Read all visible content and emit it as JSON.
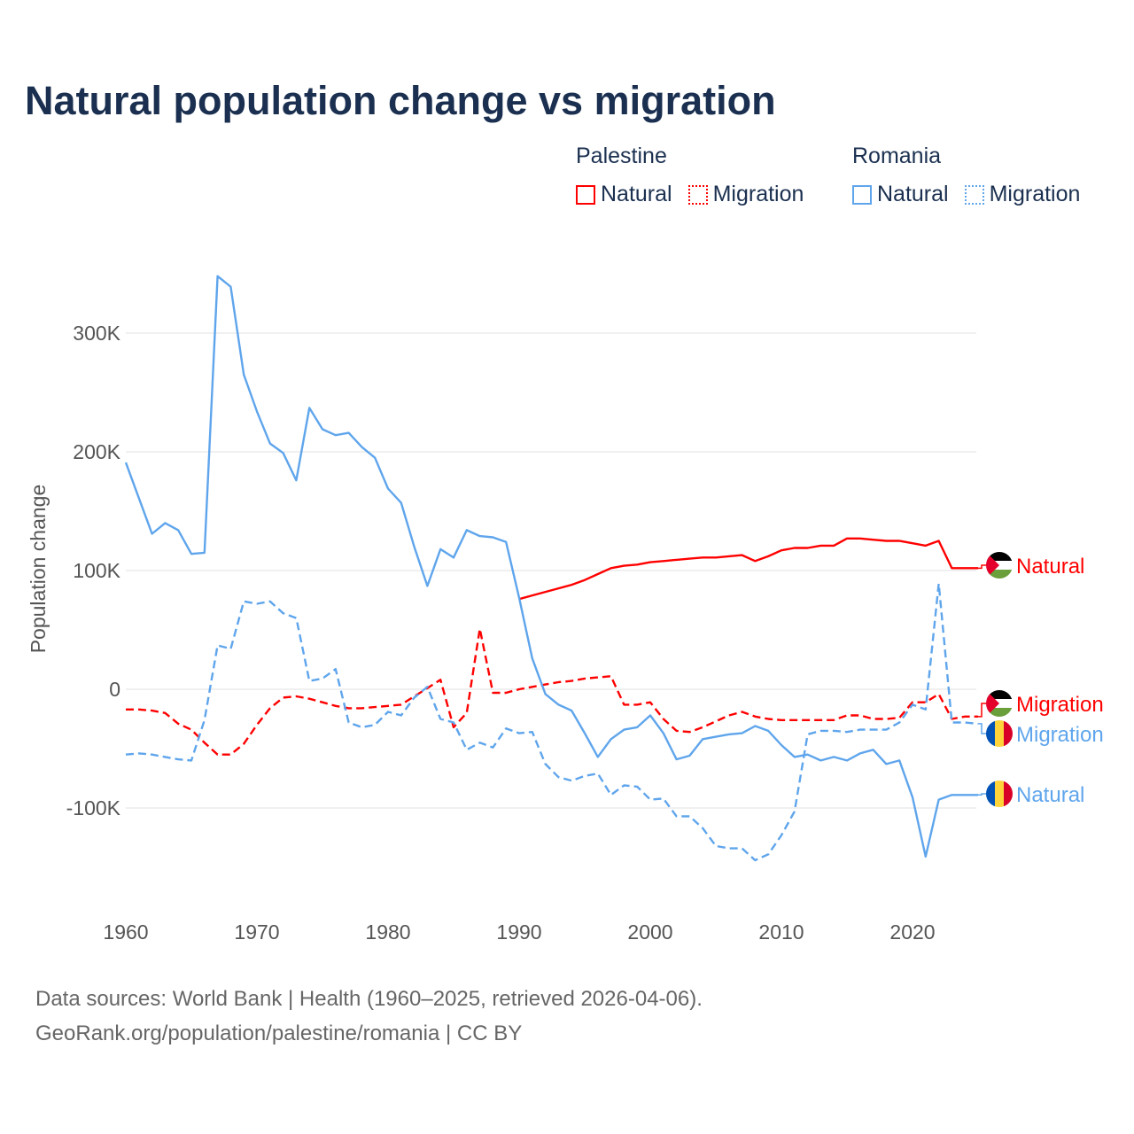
{
  "chart_data": {
    "type": "line",
    "title": "Natural population change vs migration",
    "xlabel": "",
    "ylabel": "Population change",
    "xlim": [
      1960,
      2025
    ],
    "ylim": [
      -160000,
      360000
    ],
    "x_ticks": [
      1960,
      1970,
      1980,
      1990,
      2000,
      2010,
      2020
    ],
    "x_tick_labels": [
      "1960",
      "1970",
      "1980",
      "1990",
      "2000",
      "2010",
      "2020"
    ],
    "y_ticks": [
      -100000,
      0,
      100000,
      200000,
      300000
    ],
    "y_tick_labels": [
      "-100K",
      "0",
      "100K",
      "200K",
      "300K"
    ],
    "grid": true,
    "legend": {
      "placement": "top-right",
      "groups": [
        {
          "name": "Palestine",
          "items": [
            "Natural",
            "Migration"
          ]
        },
        {
          "name": "Romania",
          "items": [
            "Natural",
            "Migration"
          ]
        }
      ]
    },
    "series": [
      {
        "name": "Palestine Natural",
        "country": "Palestine",
        "kind": "Natural",
        "color": "#ff0000",
        "dash": false,
        "end_label": "Natural",
        "x": [
          1990,
          1991,
          1992,
          1993,
          1994,
          1995,
          1996,
          1997,
          1998,
          1999,
          2000,
          2001,
          2002,
          2003,
          2004,
          2005,
          2006,
          2007,
          2008,
          2009,
          2010,
          2011,
          2012,
          2013,
          2014,
          2015,
          2016,
          2017,
          2018,
          2019,
          2020,
          2021,
          2022,
          2023,
          2024,
          2025
        ],
        "values": [
          76000,
          79000,
          82000,
          85000,
          88000,
          92000,
          97000,
          102000,
          104000,
          105000,
          107000,
          108000,
          109000,
          110000,
          111000,
          111000,
          112000,
          113000,
          108000,
          112000,
          117000,
          119000,
          119000,
          121000,
          121000,
          127000,
          127000,
          126000,
          125000,
          125000,
          123000,
          121000,
          125000,
          102000,
          102000,
          102000
        ]
      },
      {
        "name": "Palestine Migration",
        "country": "Palestine",
        "kind": "Migration",
        "color": "#ff0000",
        "dash": true,
        "end_label": "Migration",
        "x": [
          1960,
          1961,
          1962,
          1963,
          1964,
          1965,
          1966,
          1967,
          1968,
          1969,
          1970,
          1971,
          1972,
          1973,
          1974,
          1975,
          1976,
          1977,
          1978,
          1979,
          1980,
          1981,
          1982,
          1983,
          1984,
          1985,
          1986,
          1987,
          1988,
          1989,
          1990,
          1991,
          1992,
          1993,
          1994,
          1995,
          1996,
          1997,
          1998,
          1999,
          2000,
          2001,
          2002,
          2003,
          2004,
          2005,
          2006,
          2007,
          2008,
          2009,
          2010,
          2011,
          2012,
          2013,
          2014,
          2015,
          2016,
          2017,
          2018,
          2019,
          2020,
          2021,
          2022,
          2023,
          2024,
          2025
        ],
        "values": [
          -17000,
          -17000,
          -18000,
          -20000,
          -29000,
          -34000,
          -45000,
          -55000,
          -55000,
          -46000,
          -30000,
          -16000,
          -7000,
          -6000,
          -8000,
          -11000,
          -14000,
          -16000,
          -16000,
          -15000,
          -14000,
          -13000,
          -6000,
          1000,
          8000,
          -32000,
          -20000,
          51000,
          -3000,
          -3000,
          0,
          2000,
          4000,
          6000,
          7000,
          9000,
          10000,
          11000,
          -13000,
          -13000,
          -11000,
          -25000,
          -35000,
          -36000,
          -32000,
          -27000,
          -22000,
          -19000,
          -23000,
          -25000,
          -26000,
          -26000,
          -26000,
          -26000,
          -26000,
          -22000,
          -22000,
          -25000,
          -25000,
          -24000,
          -11000,
          -11000,
          -4000,
          -25000,
          -23000,
          -23000
        ]
      },
      {
        "name": "Romania Natural",
        "country": "Romania",
        "kind": "Natural",
        "color": "#5fa5ec",
        "dash": false,
        "end_label": "Natural",
        "x": [
          1960,
          1961,
          1962,
          1963,
          1964,
          1965,
          1966,
          1967,
          1968,
          1969,
          1970,
          1971,
          1972,
          1973,
          1974,
          1975,
          1976,
          1977,
          1978,
          1979,
          1980,
          1981,
          1982,
          1983,
          1984,
          1985,
          1986,
          1987,
          1988,
          1989,
          1990,
          1991,
          1992,
          1993,
          1994,
          1995,
          1996,
          1997,
          1998,
          1999,
          2000,
          2001,
          2002,
          2003,
          2004,
          2005,
          2006,
          2007,
          2008,
          2009,
          2010,
          2011,
          2012,
          2013,
          2014,
          2015,
          2016,
          2017,
          2018,
          2019,
          2020,
          2021,
          2022,
          2023,
          2024,
          2025
        ],
        "values": [
          191000,
          161000,
          131000,
          140000,
          134000,
          114000,
          115000,
          348000,
          339000,
          265000,
          234000,
          207000,
          199000,
          176000,
          237000,
          219000,
          214000,
          216000,
          204000,
          195000,
          169000,
          157000,
          120000,
          87000,
          118000,
          111000,
          134000,
          129000,
          128000,
          124000,
          77000,
          26000,
          -4000,
          -13000,
          -18000,
          -37000,
          -57000,
          -42000,
          -34000,
          -32000,
          -22000,
          -37000,
          -59000,
          -56000,
          -42000,
          -40000,
          -38000,
          -37000,
          -31000,
          -35000,
          -47000,
          -57000,
          -55000,
          -60000,
          -57000,
          -60000,
          -54000,
          -51000,
          -63000,
          -60000,
          -91000,
          -141000,
          -93000,
          -89000,
          -89000,
          -89000
        ]
      },
      {
        "name": "Romania Migration",
        "country": "Romania",
        "kind": "Migration",
        "color": "#5fa5ec",
        "dash": true,
        "end_label": "Migration",
        "x": [
          1960,
          1961,
          1962,
          1963,
          1964,
          1965,
          1966,
          1967,
          1968,
          1969,
          1970,
          1971,
          1972,
          1973,
          1974,
          1975,
          1976,
          1977,
          1978,
          1979,
          1980,
          1981,
          1982,
          1983,
          1984,
          1985,
          1986,
          1987,
          1988,
          1989,
          1990,
          1991,
          1992,
          1993,
          1994,
          1995,
          1996,
          1997,
          1998,
          1999,
          2000,
          2001,
          2002,
          2003,
          2004,
          2005,
          2006,
          2007,
          2008,
          2009,
          2010,
          2011,
          2012,
          2013,
          2014,
          2015,
          2016,
          2017,
          2018,
          2019,
          2020,
          2021,
          2022,
          2023,
          2024,
          2025
        ],
        "values": [
          -55000,
          -54000,
          -55000,
          -57000,
          -59000,
          -60000,
          -26000,
          37000,
          34000,
          74000,
          72000,
          74000,
          64000,
          60000,
          7000,
          9000,
          17000,
          -28000,
          -32000,
          -30000,
          -19000,
          -22000,
          -7000,
          2000,
          -25000,
          -28000,
          -51000,
          -45000,
          -49000,
          -33000,
          -37000,
          -36000,
          -63000,
          -74000,
          -77000,
          -73000,
          -71000,
          -89000,
          -81000,
          -82000,
          -93000,
          -92000,
          -107000,
          -107000,
          -117000,
          -132000,
          -134000,
          -134000,
          -144000,
          -139000,
          -123000,
          -103000,
          -38000,
          -35000,
          -35000,
          -36000,
          -34000,
          -34000,
          -34000,
          -28000,
          -13000,
          -17000,
          89000,
          -28000,
          -28000,
          -29000
        ]
      }
    ]
  },
  "legend_labels": {
    "palestine": "Palestine",
    "romania": "Romania",
    "natural": "Natural",
    "migration": "Migration"
  },
  "footer": {
    "line1": "Data sources: World Bank | Health (1960–2025, retrieved 2026-04-06).",
    "line2": "GeoRank.org/population/palestine/romania | CC BY"
  },
  "colors": {
    "palestine": "#ff0000",
    "romania": "#5fa5ec",
    "title": "#1b3050"
  },
  "icons": {
    "palestine": "palestine-flag-icon",
    "romania": "romania-flag-icon"
  }
}
